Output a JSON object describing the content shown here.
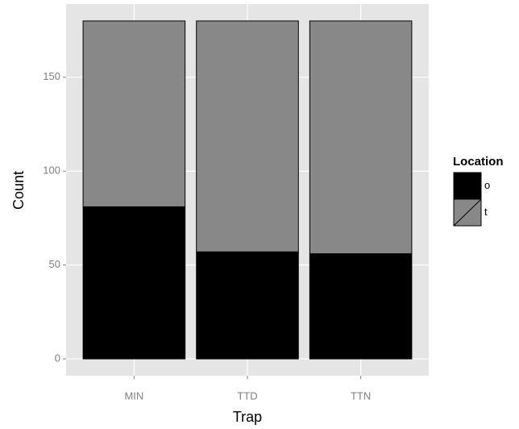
{
  "chart_data": {
    "type": "bar",
    "stacked": true,
    "x_label": "Trap",
    "y_label": "Count",
    "categories": [
      "MIN",
      "TTD",
      "TTN"
    ],
    "series": [
      {
        "name": "o",
        "color": "#000000",
        "values": [
          81,
          57,
          56
        ]
      },
      {
        "name": "t",
        "color": "#888888",
        "values": [
          99,
          123,
          124
        ]
      }
    ],
    "legend_title": "Location",
    "legend_position": "right",
    "ylim": [
      -9,
      189
    ],
    "yticks": [
      0,
      50,
      100,
      150
    ],
    "grid": true
  }
}
